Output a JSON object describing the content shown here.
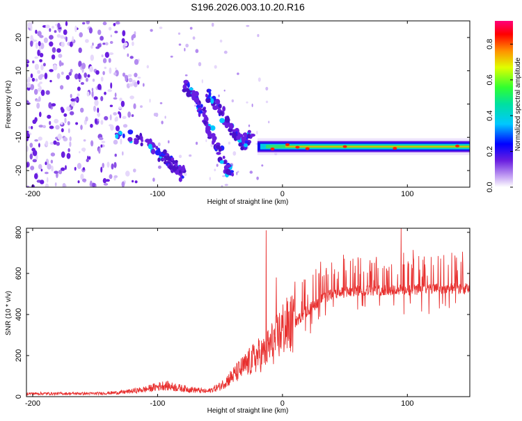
{
  "title": "S196.2026.003.10.20.R16",
  "chart_data": [
    {
      "type": "heatmap",
      "name": "spectrogram",
      "xlabel": "Height of straight line (km)",
      "ylabel": "Frequency (Hz)",
      "xlim": [
        -205,
        150
      ],
      "ylim": [
        -25,
        25
      ],
      "x_ticks": [
        "-200",
        "-100",
        "0",
        "100"
      ],
      "x_tick_values": [
        -200,
        -100,
        0,
        100
      ],
      "y_ticks": [
        "20",
        "10",
        "0",
        "-10",
        "-20"
      ],
      "y_tick_values": [
        20,
        10,
        0,
        -10,
        -20
      ],
      "colorbar": {
        "label": "Normalized spectral amplitude",
        "range": [
          0,
          0.93
        ],
        "ticks": [
          "0.0",
          "0.2",
          "0.4",
          "0.6",
          "0.8"
        ],
        "tick_values": [
          0.0,
          0.2,
          0.4,
          0.6,
          0.8
        ]
      },
      "features": [
        {
          "name": "main-tone",
          "x": [
            -20,
            150
          ],
          "y_center": -12.8,
          "peak": 0.9
        },
        {
          "name": "track-A",
          "points": [
            [
              -135,
              -8
            ],
            [
              -110,
              -11
            ],
            [
              -95,
              -16
            ],
            [
              -85,
              -19
            ],
            [
              -80,
              -21
            ]
          ]
        },
        {
          "name": "track-B",
          "points": [
            [
              -78,
              6
            ],
            [
              -70,
              2
            ],
            [
              -62,
              -4
            ],
            [
              -55,
              -10
            ],
            [
              -48,
              -16
            ],
            [
              -40,
              -22
            ]
          ]
        },
        {
          "name": "track-C",
          "points": [
            [
              -60,
              3
            ],
            [
              -50,
              -2
            ],
            [
              -40,
              -8
            ],
            [
              -32,
              -12
            ],
            [
              -25,
              -10
            ]
          ]
        }
      ]
    },
    {
      "type": "line",
      "name": "snr",
      "xlabel": "Height of straight line (km)",
      "ylabel": "SNR (10 * v/v)",
      "xlim": [
        -205,
        150
      ],
      "ylim": [
        0,
        820
      ],
      "x_ticks": [
        "-200",
        "-100",
        "0",
        "100"
      ],
      "x_tick_values": [
        -200,
        -100,
        0,
        100
      ],
      "y_ticks": [
        "800",
        "600",
        "400",
        "200",
        "0"
      ],
      "y_tick_values": [
        800,
        600,
        400,
        200,
        0
      ],
      "color": "#e8302f",
      "series": [
        {
          "name": "SNR envelope",
          "x": [
            -205,
            -150,
            -130,
            -110,
            -95,
            -80,
            -60,
            -50,
            -40,
            -30,
            -20,
            -15,
            -10,
            -5,
            0,
            10,
            20,
            30,
            40,
            60,
            80,
            100,
            120,
            150
          ],
          "values": [
            15,
            15,
            20,
            35,
            55,
            40,
            25,
            50,
            100,
            150,
            200,
            210,
            250,
            280,
            330,
            360,
            420,
            470,
            500,
            515,
            520,
            520,
            525,
            525
          ]
        },
        {
          "name": "spikes",
          "x": [
            -13,
            -5,
            10,
            95
          ],
          "values": [
            810,
            580,
            560,
            820
          ]
        }
      ]
    }
  ]
}
